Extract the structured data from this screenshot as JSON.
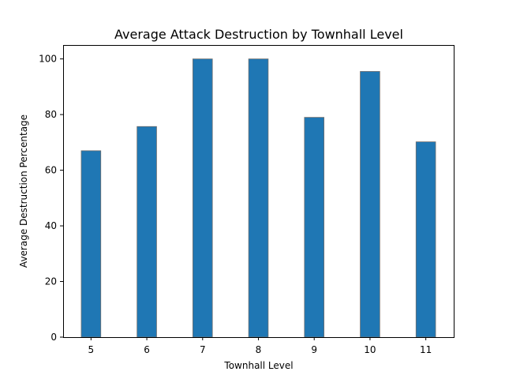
{
  "chart_data": {
    "type": "bar",
    "title": "Average Attack Destruction by Townhall Level",
    "xlabel": "Townhall Level",
    "ylabel": "Average Destruction Percentage",
    "categories": [
      "5",
      "6",
      "7",
      "8",
      "9",
      "10",
      "11"
    ],
    "values": [
      67.0,
      75.7,
      100.0,
      100.0,
      79.0,
      95.5,
      70.2
    ],
    "ylim": [
      0,
      105
    ],
    "yticks": [
      0,
      20,
      40,
      60,
      80,
      100
    ],
    "yticklabels": [
      "0",
      "20",
      "40",
      "60",
      "80",
      "100"
    ],
    "bar_color": "#1f77b4",
    "bar_edge_color": "#6e6e6e",
    "grid": false,
    "legend": "none"
  }
}
